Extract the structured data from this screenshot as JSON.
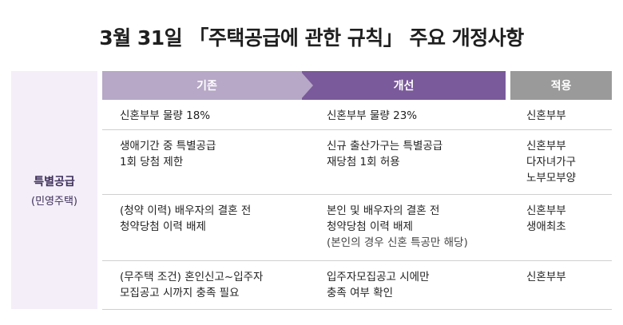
{
  "title": "3월 31일 「주택공급에 관한 규칙」 주요 개정사항",
  "category": {
    "main": "특별공급",
    "sub": "(민영주택)"
  },
  "headers": {
    "before": "기존",
    "after": "개선",
    "applies": "적용"
  },
  "rows": [
    {
      "before": [
        "신혼부부 물량 18%"
      ],
      "after": [
        "신혼부부 물량 23%"
      ],
      "applies": [
        "신혼부부"
      ]
    },
    {
      "before": [
        "생애기간 중 특별공급",
        "1회 당첨 제한"
      ],
      "after": [
        "신규 출산가구는 특별공급",
        "재당첨 1회 허용"
      ],
      "applies": [
        "신혼부부",
        "다자녀가구",
        "노부모부양"
      ]
    },
    {
      "before": [
        "(청약 이력) 배우자의 결혼 전",
        "청약당첨 이력 배제"
      ],
      "after": [
        "본인 및 배우자의 결혼 전",
        "청약당첨 이력 배제",
        "(본인의 경우 신혼 특공만 해당)"
      ],
      "applies": [
        "신혼부부",
        "생애최초"
      ]
    },
    {
      "before": [
        "(무주택 조건) 혼인신고~입주자",
        "모집공고 시까지 충족 필요"
      ],
      "after": [
        "입주자모집공고 시에만",
        "충족 여부 확인"
      ],
      "applies": [
        "신혼부부"
      ]
    }
  ]
}
